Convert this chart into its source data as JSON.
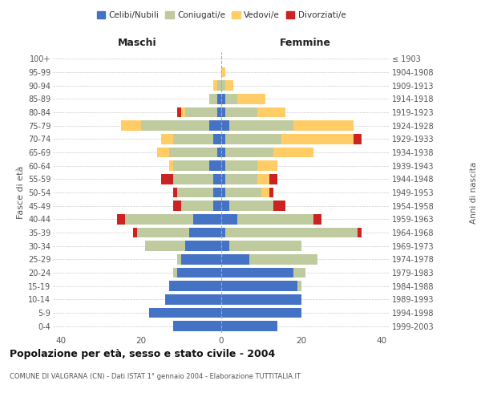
{
  "age_groups": [
    "0-4",
    "5-9",
    "10-14",
    "15-19",
    "20-24",
    "25-29",
    "30-34",
    "35-39",
    "40-44",
    "45-49",
    "50-54",
    "55-59",
    "60-64",
    "65-69",
    "70-74",
    "75-79",
    "80-84",
    "85-89",
    "90-94",
    "95-99",
    "100+"
  ],
  "birth_years": [
    "1999-2003",
    "1994-1998",
    "1989-1993",
    "1984-1988",
    "1979-1983",
    "1974-1978",
    "1969-1973",
    "1964-1968",
    "1959-1963",
    "1954-1958",
    "1949-1953",
    "1944-1948",
    "1939-1943",
    "1934-1938",
    "1929-1933",
    "1924-1928",
    "1919-1923",
    "1914-1918",
    "1909-1913",
    "1904-1908",
    "≤ 1903"
  ],
  "colors": {
    "celibi": "#4472C4",
    "coniugati": "#BFCA9E",
    "vedovi": "#FFCC66",
    "divorziati": "#CC2222"
  },
  "maschi": {
    "celibi": [
      12,
      18,
      14,
      13,
      11,
      10,
      9,
      8,
      7,
      2,
      2,
      2,
      3,
      1,
      2,
      3,
      1,
      1,
      0,
      0,
      0
    ],
    "coniugati": [
      0,
      0,
      0,
      0,
      1,
      1,
      10,
      13,
      17,
      8,
      9,
      10,
      9,
      12,
      10,
      17,
      8,
      2,
      1,
      0,
      0
    ],
    "vedovi": [
      0,
      0,
      0,
      0,
      0,
      0,
      0,
      0,
      0,
      0,
      0,
      0,
      1,
      3,
      3,
      5,
      1,
      0,
      1,
      0,
      0
    ],
    "divorziati": [
      0,
      0,
      0,
      0,
      0,
      0,
      0,
      1,
      2,
      2,
      1,
      3,
      0,
      0,
      0,
      0,
      1,
      0,
      0,
      0,
      0
    ]
  },
  "femmine": {
    "celibi": [
      14,
      20,
      20,
      19,
      18,
      7,
      2,
      1,
      4,
      2,
      1,
      1,
      1,
      1,
      1,
      2,
      1,
      1,
      0,
      0,
      0
    ],
    "coniugati": [
      0,
      0,
      0,
      1,
      3,
      17,
      18,
      33,
      19,
      11,
      9,
      8,
      8,
      12,
      14,
      16,
      8,
      3,
      1,
      0,
      0
    ],
    "vedovi": [
      0,
      0,
      0,
      0,
      0,
      0,
      0,
      0,
      0,
      0,
      2,
      3,
      5,
      10,
      18,
      15,
      7,
      7,
      2,
      1,
      0
    ],
    "divorziati": [
      0,
      0,
      0,
      0,
      0,
      0,
      0,
      1,
      2,
      3,
      1,
      2,
      0,
      0,
      2,
      0,
      0,
      0,
      0,
      0,
      0
    ]
  },
  "title": "Popolazione per età, sesso e stato civile - 2004",
  "subtitle": "COMUNE DI VALGRANA (CN) - Dati ISTAT 1° gennaio 2004 - Elaborazione TUTTITALIA.IT",
  "xlabel_maschi": "Maschi",
  "xlabel_femmine": "Femmine",
  "ylabel": "Fasce di età",
  "ylabel2": "Anni di nascita",
  "legend_labels": [
    "Celibi/Nubili",
    "Coniugati/e",
    "Vedovi/e",
    "Divorziati/e"
  ],
  "xlim": 42
}
